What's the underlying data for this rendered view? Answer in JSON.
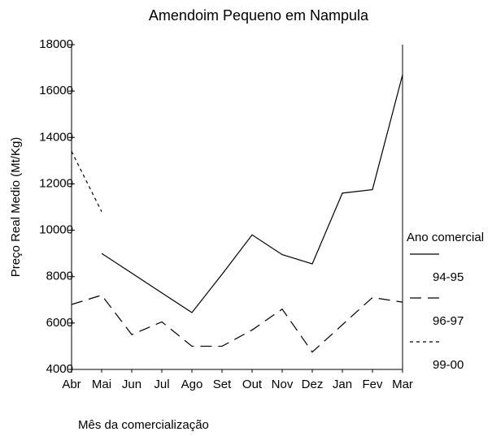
{
  "chart_data": {
    "type": "line",
    "title": "Amendoim Pequeno em Nampula",
    "x_label": "Mês da comercialização",
    "y_label": "Preço Real Medio (Mt/Kg)",
    "legend_title": "Ano comercial",
    "categories": [
      "Abr",
      "Mai",
      "Jun",
      "Jul",
      "Ago",
      "Set",
      "Out",
      "Nov",
      "Dez",
      "Jan",
      "Fev",
      "Mar"
    ],
    "series": [
      {
        "name": "94-95",
        "color": "#000000",
        "dash": "none",
        "values": [
          null,
          9000,
          8150,
          7300,
          6450,
          8100,
          9800,
          8950,
          8550,
          11600,
          11750,
          16700
        ]
      },
      {
        "name": "96-97",
        "color": "#000000",
        "dash": "14 8",
        "values": [
          6800,
          7200,
          5500,
          6050,
          5000,
          5000,
          5700,
          6600,
          4750,
          5925,
          7100,
          6900
        ]
      },
      {
        "name": "99-00",
        "color": "#000000",
        "dash": "4 4",
        "values": [
          13400,
          10800,
          null,
          null,
          null,
          null,
          null,
          null,
          null,
          null,
          null,
          null
        ]
      }
    ],
    "ylim": [
      4000,
      18000
    ],
    "yticks": [
      4000,
      6000,
      8000,
      10000,
      12000,
      14000,
      16000,
      18000
    ],
    "legend_position": "right"
  }
}
